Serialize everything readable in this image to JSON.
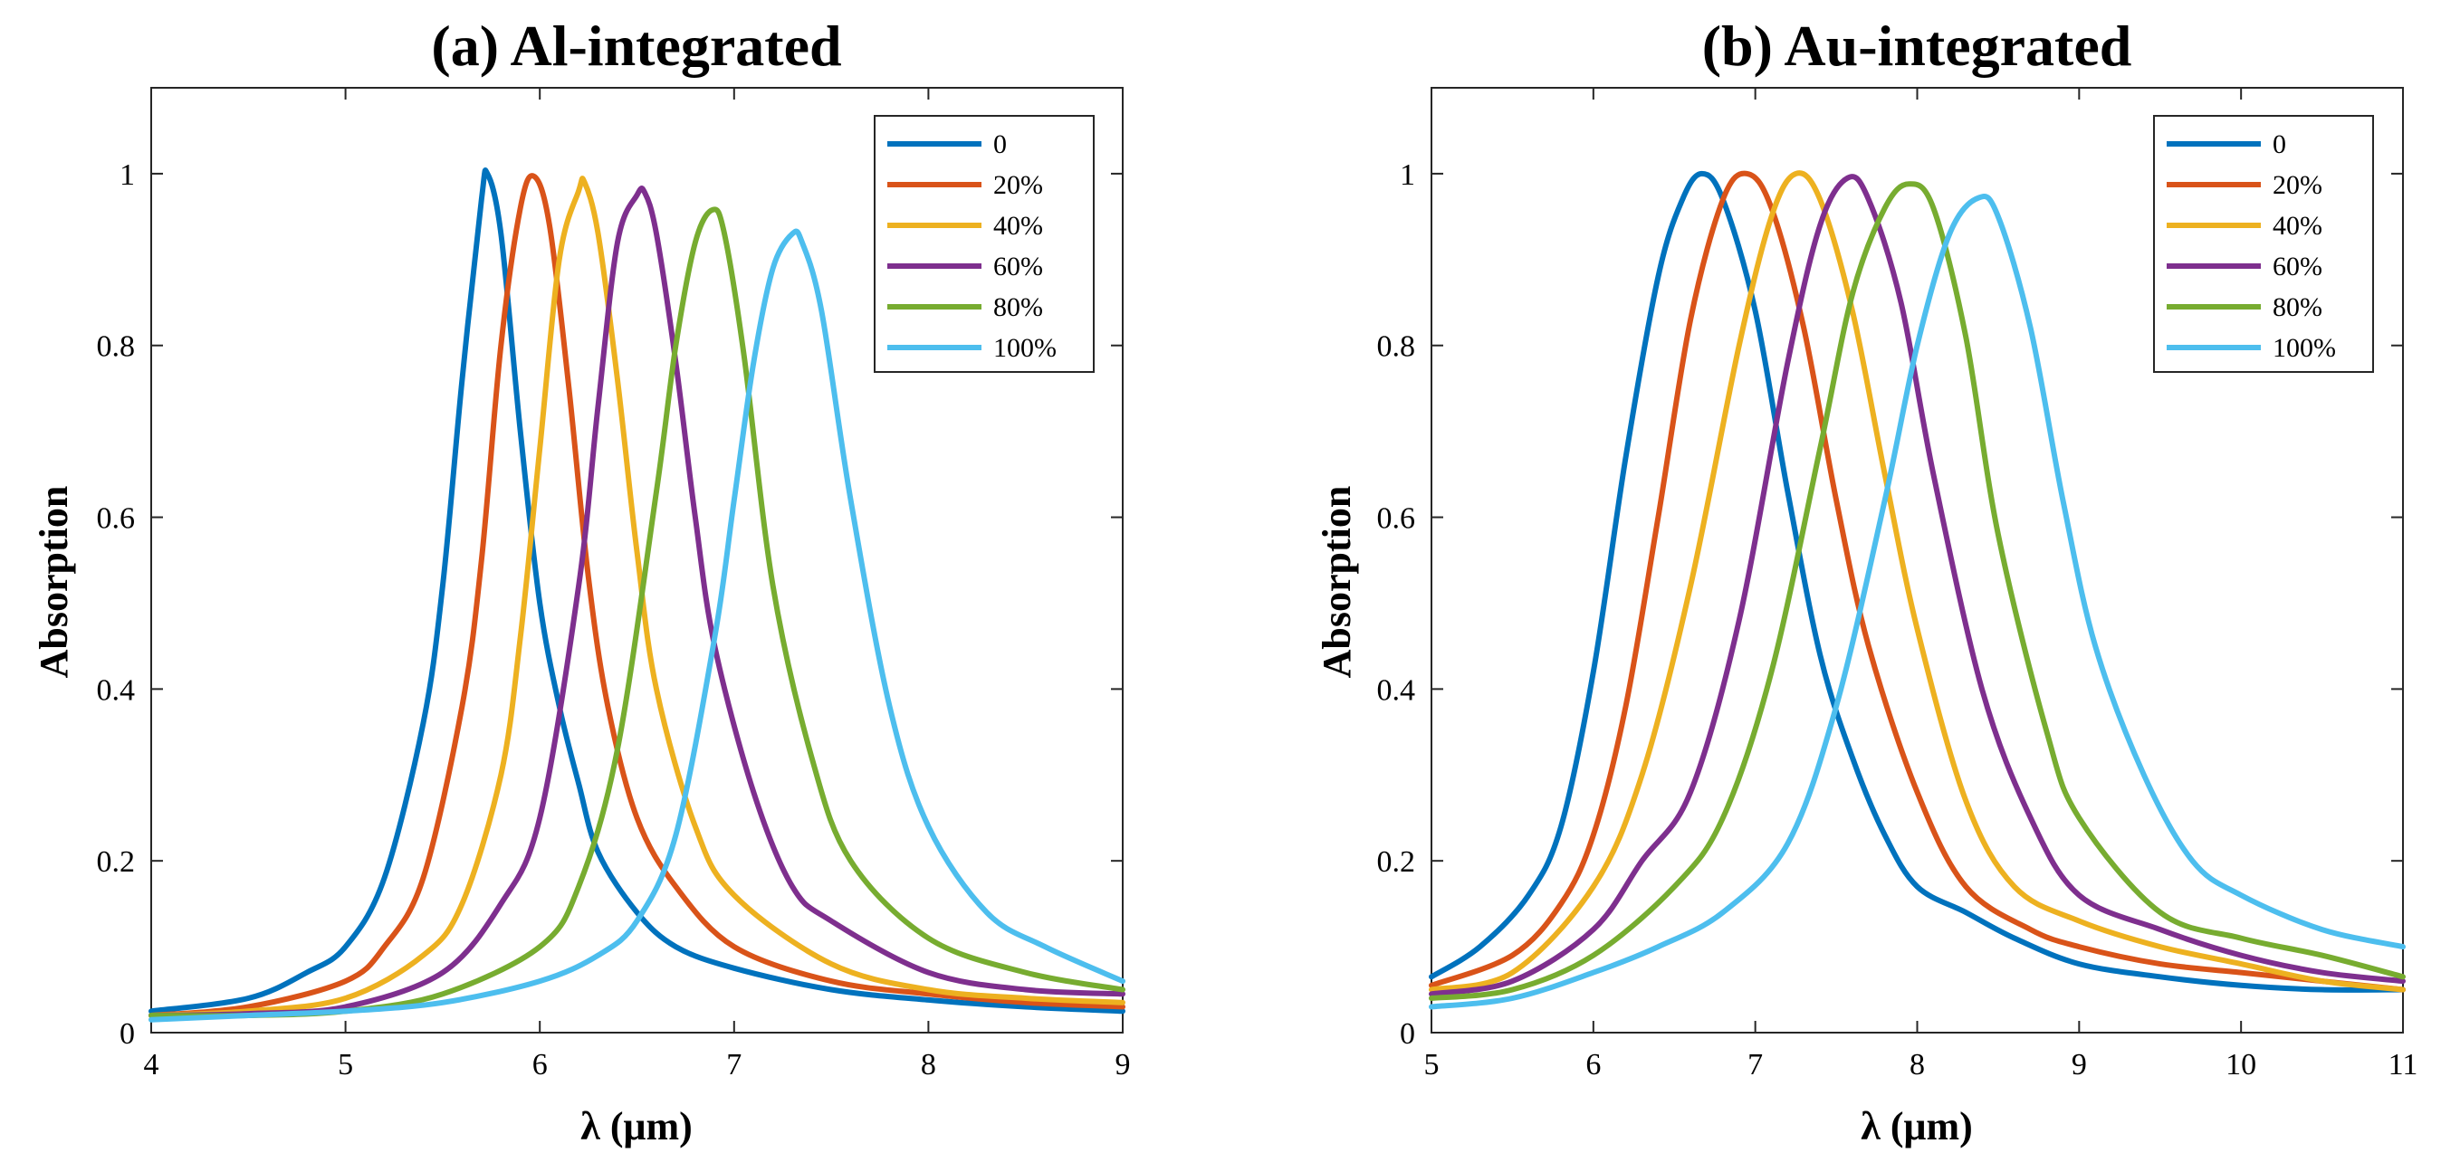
{
  "chart_data": [
    {
      "type": "line",
      "title": "(a) Al-integrated",
      "xlabel": "λ (μm)",
      "ylabel": "Absorption",
      "xlim": [
        4,
        9
      ],
      "ylim": [
        0,
        1.1
      ],
      "xticks": [
        "4",
        "5",
        "6",
        "7",
        "8",
        "9"
      ],
      "yticks": [
        "0",
        "0.2",
        "0.4",
        "0.6",
        "0.8",
        "1"
      ],
      "grid": false,
      "legend_position": "top-right",
      "series": [
        {
          "name": "0",
          "color": "#0072BD",
          "x": [
            4.0,
            4.5,
            4.8,
            5.0,
            5.2,
            5.4,
            5.5,
            5.6,
            5.7,
            5.73,
            5.8,
            5.9,
            6.0,
            6.1,
            6.2,
            6.3,
            6.5,
            6.7,
            7.0,
            7.5,
            8.0,
            8.5,
            9.0
          ],
          "y": [
            0.025,
            0.04,
            0.07,
            0.1,
            0.18,
            0.36,
            0.52,
            0.76,
            0.97,
            1.0,
            0.93,
            0.7,
            0.5,
            0.38,
            0.29,
            0.21,
            0.14,
            0.1,
            0.075,
            0.05,
            0.038,
            0.03,
            0.025
          ]
        },
        {
          "name": "20%",
          "color": "#D95319",
          "x": [
            4.0,
            4.5,
            5.0,
            5.2,
            5.4,
            5.6,
            5.7,
            5.8,
            5.9,
            5.97,
            6.05,
            6.15,
            6.25,
            6.35,
            6.5,
            6.7,
            7.0,
            7.5,
            8.0,
            8.5,
            9.0
          ],
          "y": [
            0.02,
            0.03,
            0.06,
            0.1,
            0.18,
            0.38,
            0.55,
            0.8,
            0.96,
            0.997,
            0.94,
            0.75,
            0.53,
            0.38,
            0.25,
            0.17,
            0.1,
            0.06,
            0.045,
            0.035,
            0.03
          ]
        },
        {
          "name": "40%",
          "color": "#EDB120",
          "x": [
            4.0,
            4.5,
            5.0,
            5.4,
            5.6,
            5.8,
            5.9,
            6.0,
            6.1,
            6.2,
            6.23,
            6.3,
            6.4,
            6.5,
            6.6,
            6.8,
            7.0,
            7.5,
            8.0,
            8.5,
            9.0
          ],
          "y": [
            0.02,
            0.025,
            0.04,
            0.09,
            0.15,
            0.3,
            0.46,
            0.68,
            0.9,
            0.98,
            0.99,
            0.93,
            0.76,
            0.56,
            0.4,
            0.24,
            0.16,
            0.08,
            0.05,
            0.04,
            0.035
          ]
        },
        {
          "name": "60%",
          "color": "#7E2F8E",
          "x": [
            4.0,
            4.5,
            5.0,
            5.5,
            5.8,
            6.0,
            6.2,
            6.3,
            6.4,
            6.5,
            6.54,
            6.6,
            6.7,
            6.8,
            6.9,
            7.1,
            7.3,
            7.5,
            8.0,
            8.5,
            9.0
          ],
          "y": [
            0.02,
            0.022,
            0.03,
            0.07,
            0.15,
            0.25,
            0.52,
            0.73,
            0.92,
            0.975,
            0.978,
            0.93,
            0.78,
            0.6,
            0.45,
            0.28,
            0.17,
            0.13,
            0.07,
            0.05,
            0.045
          ]
        },
        {
          "name": "80%",
          "color": "#77AC30",
          "x": [
            4.0,
            4.5,
            5.0,
            5.5,
            6.0,
            6.2,
            6.4,
            6.6,
            6.7,
            6.8,
            6.89,
            6.95,
            7.05,
            7.2,
            7.4,
            7.6,
            8.0,
            8.5,
            9.0
          ],
          "y": [
            0.02,
            0.02,
            0.025,
            0.045,
            0.1,
            0.17,
            0.33,
            0.63,
            0.8,
            0.92,
            0.958,
            0.93,
            0.79,
            0.52,
            0.32,
            0.2,
            0.11,
            0.07,
            0.05
          ]
        },
        {
          "name": "100%",
          "color": "#4DBEEE",
          "x": [
            4.0,
            4.5,
            5.0,
            5.5,
            6.0,
            6.3,
            6.5,
            6.7,
            6.9,
            7.0,
            7.1,
            7.2,
            7.3,
            7.35,
            7.45,
            7.6,
            7.8,
            8.0,
            8.3,
            8.6,
            9.0
          ],
          "y": [
            0.015,
            0.02,
            0.025,
            0.035,
            0.06,
            0.09,
            0.13,
            0.23,
            0.46,
            0.62,
            0.78,
            0.89,
            0.93,
            0.92,
            0.84,
            0.62,
            0.38,
            0.24,
            0.14,
            0.1,
            0.06
          ]
        }
      ]
    },
    {
      "type": "line",
      "title": "(b) Au-integrated",
      "xlabel": "λ (μm)",
      "ylabel": "Absorption",
      "xlim": [
        5,
        11
      ],
      "ylim": [
        0,
        1.1
      ],
      "xticks": [
        "5",
        "6",
        "7",
        "8",
        "9",
        "10",
        "11"
      ],
      "yticks": [
        "0",
        "0.2",
        "0.4",
        "0.6",
        "0.8",
        "1"
      ],
      "grid": false,
      "legend_position": "top-right",
      "series": [
        {
          "name": "0",
          "color": "#0072BD",
          "x": [
            5.0,
            5.3,
            5.6,
            5.8,
            6.0,
            6.2,
            6.4,
            6.55,
            6.67,
            6.8,
            7.0,
            7.2,
            7.4,
            7.6,
            7.8,
            8.0,
            8.3,
            8.6,
            9.0,
            9.5,
            10.0,
            10.5,
            11.0
          ],
          "y": [
            0.065,
            0.1,
            0.16,
            0.24,
            0.42,
            0.67,
            0.88,
            0.97,
            1.0,
            0.97,
            0.84,
            0.63,
            0.44,
            0.32,
            0.23,
            0.17,
            0.14,
            0.11,
            0.08,
            0.065,
            0.055,
            0.05,
            0.05
          ]
        },
        {
          "name": "20%",
          "color": "#D95319",
          "x": [
            5.0,
            5.5,
            5.8,
            6.0,
            6.2,
            6.4,
            6.6,
            6.8,
            6.95,
            7.1,
            7.3,
            7.5,
            7.7,
            8.0,
            8.3,
            8.7,
            9.0,
            9.5,
            10.0,
            10.5,
            11.0
          ],
          "y": [
            0.055,
            0.09,
            0.15,
            0.23,
            0.38,
            0.6,
            0.83,
            0.97,
            1.0,
            0.96,
            0.82,
            0.62,
            0.45,
            0.28,
            0.17,
            0.12,
            0.1,
            0.08,
            0.07,
            0.06,
            0.05
          ]
        },
        {
          "name": "40%",
          "color": "#EDB120",
          "x": [
            5.0,
            5.5,
            6.0,
            6.3,
            6.6,
            6.9,
            7.1,
            7.25,
            7.4,
            7.6,
            7.8,
            8.0,
            8.3,
            8.6,
            9.0,
            9.5,
            10.0,
            10.5,
            11.0
          ],
          "y": [
            0.05,
            0.07,
            0.17,
            0.3,
            0.52,
            0.8,
            0.95,
            1.0,
            0.97,
            0.84,
            0.65,
            0.47,
            0.27,
            0.17,
            0.13,
            0.1,
            0.08,
            0.06,
            0.05
          ]
        },
        {
          "name": "60%",
          "color": "#7E2F8E",
          "x": [
            5.0,
            5.5,
            6.0,
            6.3,
            6.6,
            6.9,
            7.2,
            7.4,
            7.57,
            7.7,
            7.9,
            8.1,
            8.4,
            8.7,
            9.0,
            9.5,
            10.0,
            10.5,
            11.0
          ],
          "y": [
            0.045,
            0.06,
            0.12,
            0.2,
            0.28,
            0.48,
            0.78,
            0.94,
            0.995,
            0.97,
            0.85,
            0.65,
            0.4,
            0.25,
            0.16,
            0.12,
            0.09,
            0.07,
            0.06
          ]
        },
        {
          "name": "80%",
          "color": "#77AC30",
          "x": [
            5.0,
            5.5,
            6.0,
            6.5,
            6.8,
            7.1,
            7.4,
            7.6,
            7.8,
            7.95,
            8.1,
            8.3,
            8.5,
            8.8,
            9.0,
            9.5,
            10.0,
            10.5,
            11.0
          ],
          "y": [
            0.04,
            0.05,
            0.09,
            0.17,
            0.25,
            0.42,
            0.68,
            0.86,
            0.96,
            0.988,
            0.96,
            0.81,
            0.58,
            0.35,
            0.25,
            0.14,
            0.11,
            0.09,
            0.065
          ]
        },
        {
          "name": "100%",
          "color": "#4DBEEE",
          "x": [
            5.0,
            5.5,
            6.0,
            6.4,
            6.8,
            7.2,
            7.5,
            7.8,
            8.0,
            8.2,
            8.38,
            8.5,
            8.7,
            8.9,
            9.1,
            9.4,
            9.7,
            10.0,
            10.5,
            11.0
          ],
          "y": [
            0.03,
            0.04,
            0.07,
            0.1,
            0.14,
            0.22,
            0.38,
            0.62,
            0.8,
            0.93,
            0.972,
            0.95,
            0.82,
            0.62,
            0.45,
            0.3,
            0.2,
            0.16,
            0.12,
            0.1
          ]
        }
      ]
    }
  ]
}
